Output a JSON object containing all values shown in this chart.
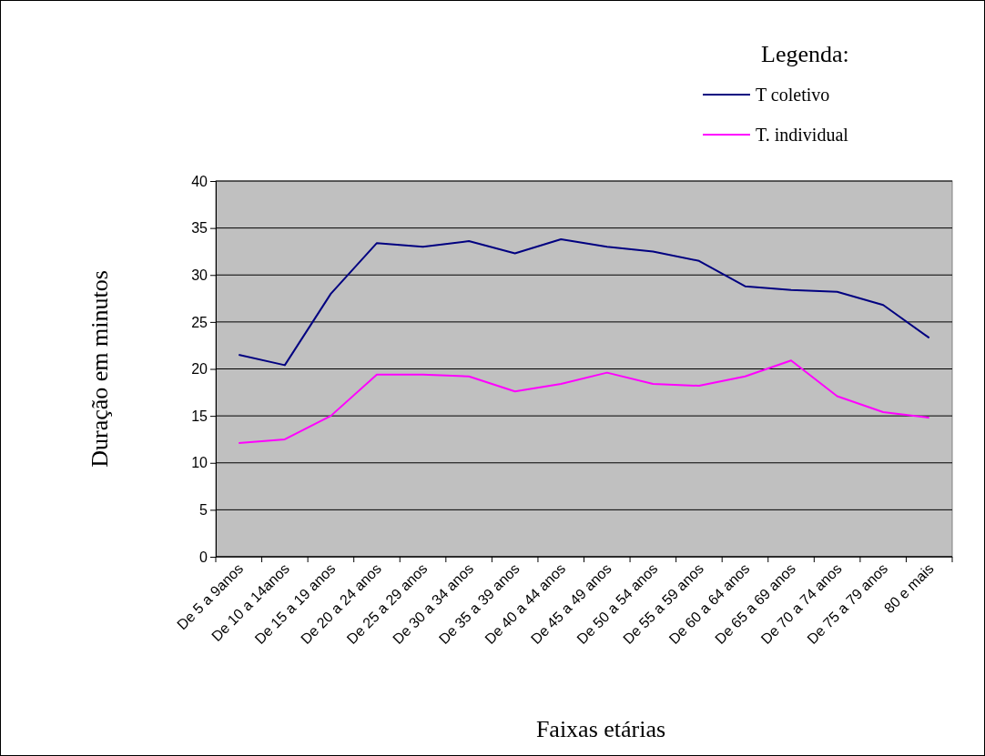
{
  "chart_data": {
    "type": "line",
    "xlabel": "Faixas etárias",
    "ylabel": "Duração em minutos",
    "legend_title": "Legenda:",
    "categories": [
      "De 5 a 9anos",
      "De 10 a 14anos",
      "De 15 a 19 anos",
      "De 20 a 24 anos",
      "De 25 a 29 anos",
      "De 30 a 34 anos",
      "De 35 a 39 anos",
      "De 40 a 44 anos",
      "De 45 a 49 anos",
      "De 50 a 54 anos",
      "De 55 a 59 anos",
      "De 60 a 64 anos",
      "De 65 a 69 anos",
      "De 70 a 74 anos",
      "De 75 a 79 anos",
      "80 e mais"
    ],
    "series": [
      {
        "name": "T coletivo",
        "color": "#000080",
        "values": [
          21.5,
          20.4,
          28.0,
          33.4,
          33.0,
          33.6,
          32.3,
          33.8,
          33.0,
          32.5,
          31.5,
          28.8,
          28.4,
          28.2,
          26.8,
          23.3
        ]
      },
      {
        "name": "T. individual",
        "color": "#ff00ff",
        "values": [
          12.1,
          12.5,
          15.0,
          19.4,
          19.4,
          19.2,
          17.6,
          18.4,
          19.6,
          18.4,
          18.2,
          19.2,
          20.9,
          17.1,
          15.4,
          14.8
        ]
      }
    ],
    "ylim": [
      0,
      40
    ],
    "yticks": [
      0,
      5,
      10,
      15,
      20,
      25,
      30,
      35,
      40
    ],
    "grid": "y",
    "legend": "top right",
    "marker": "none",
    "line_style": "solid"
  }
}
